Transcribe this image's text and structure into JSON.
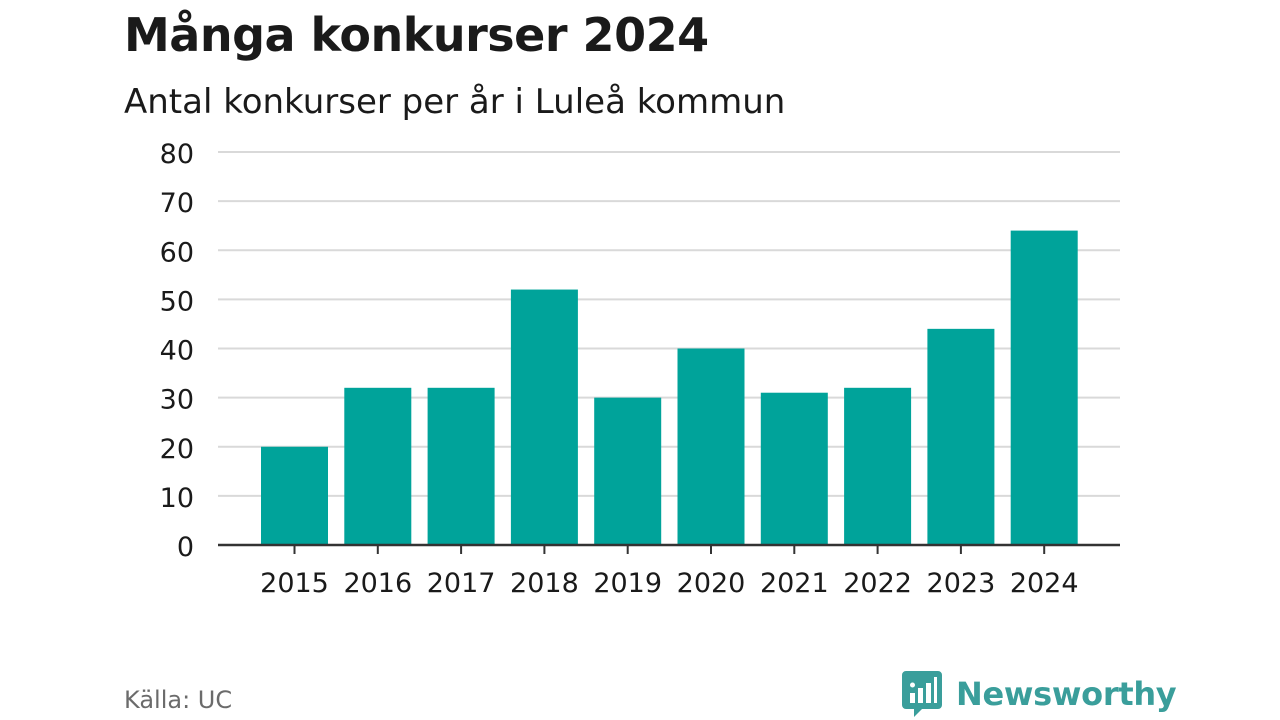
{
  "colors": {
    "bar": "#00a39a",
    "grid": "#d9d9d9",
    "axis": "#333333",
    "text": "#1a1a1a",
    "brand": "#3a9e9b"
  },
  "footer": {
    "source": "Källa: UC",
    "brand": "Newsworthy",
    "brand_icon": "bar-chart-speech-bubble-icon"
  },
  "chart_data": {
    "type": "bar",
    "title": "Många konkurser 2024",
    "subtitle": "Antal konkurser per år i Luleå kommun",
    "xlabel": "",
    "ylabel": "",
    "categories": [
      "2015",
      "2016",
      "2017",
      "2018",
      "2019",
      "2020",
      "2021",
      "2022",
      "2023",
      "2024"
    ],
    "values": [
      20,
      32,
      32,
      52,
      30,
      40,
      31,
      32,
      44,
      64
    ],
    "ylim": [
      0,
      80
    ],
    "yticks": [
      0,
      10,
      20,
      30,
      40,
      50,
      60,
      70,
      80
    ],
    "grid": true
  }
}
